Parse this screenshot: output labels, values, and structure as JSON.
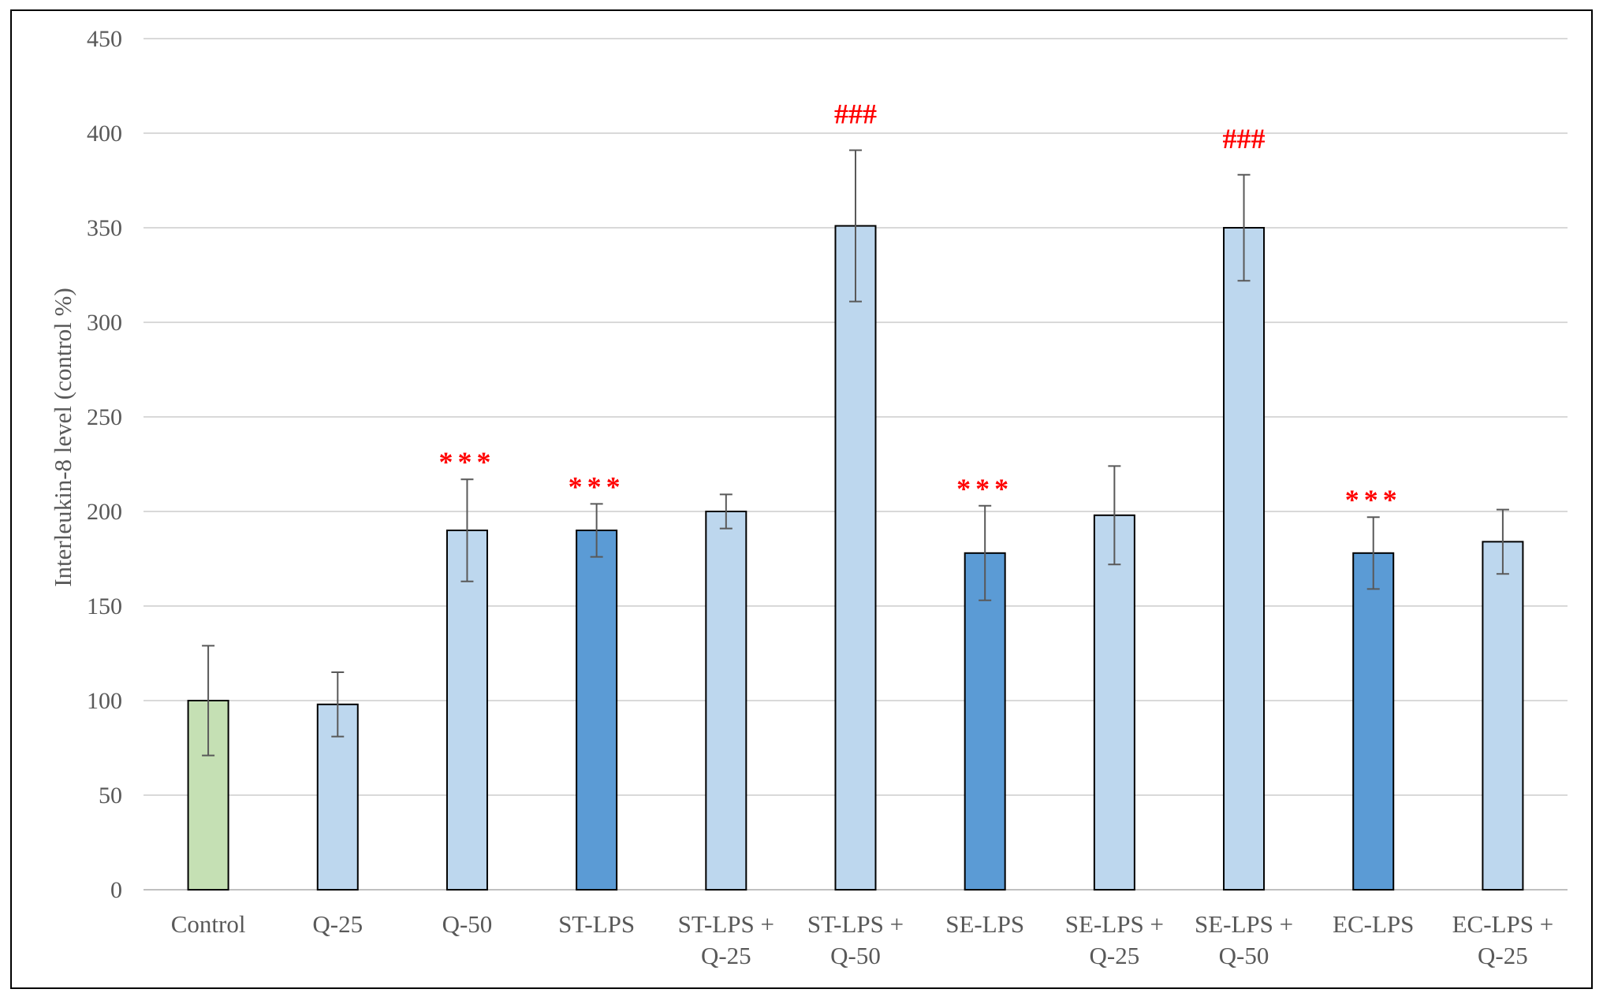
{
  "chart_data": {
    "type": "bar",
    "title": "",
    "xlabel": "",
    "ylabel": "Interleukin-8 level (control %)",
    "ylim": [
      0,
      450
    ],
    "yticks": [
      0,
      50,
      100,
      150,
      200,
      250,
      300,
      350,
      400,
      450
    ],
    "ytick_labels": [
      "0",
      "50",
      "100",
      "150",
      "200",
      "250",
      "300",
      "350",
      "400",
      "450"
    ],
    "grid": true,
    "legend": "none",
    "colors": {
      "control": "#c5e0b4",
      "treatment": "#bdd7ee",
      "lps": "#5b9bd5",
      "bar_edge": "#000000",
      "grid": "#d9d9d9",
      "error_bar": "#595959",
      "annotation": "#ff0000",
      "frame": "#000000"
    },
    "bars": [
      {
        "label": [
          "Control"
        ],
        "value": 100,
        "error": 29,
        "group": "control",
        "annotation": ""
      },
      {
        "label": [
          "Q-25"
        ],
        "value": 98,
        "error": 17,
        "group": "treatment",
        "annotation": ""
      },
      {
        "label": [
          "Q-50"
        ],
        "value": 190,
        "error": 27,
        "group": "treatment",
        "annotation": "***"
      },
      {
        "label": [
          "ST-LPS"
        ],
        "value": 190,
        "error": 14,
        "group": "lps",
        "annotation": "***"
      },
      {
        "label": [
          "ST-LPS +",
          "Q-25"
        ],
        "value": 200,
        "error": 9,
        "group": "treatment",
        "annotation": ""
      },
      {
        "label": [
          "ST-LPS +",
          "Q-50"
        ],
        "value": 351,
        "error": 40,
        "group": "treatment",
        "annotation": "###"
      },
      {
        "label": [
          "SE-LPS"
        ],
        "value": 178,
        "error": 25,
        "group": "lps",
        "annotation": "***"
      },
      {
        "label": [
          "SE-LPS +",
          "Q-25"
        ],
        "value": 198,
        "error": 26,
        "group": "treatment",
        "annotation": ""
      },
      {
        "label": [
          "SE-LPS +",
          "Q-50"
        ],
        "value": 350,
        "error": 28,
        "group": "treatment",
        "annotation": "###"
      },
      {
        "label": [
          "EC-LPS"
        ],
        "value": 178,
        "error": 19,
        "group": "lps",
        "annotation": "***"
      },
      {
        "label": [
          "EC-LPS +",
          "Q-25"
        ],
        "value": 184,
        "error": 17,
        "group": "treatment",
        "annotation": ""
      }
    ]
  }
}
